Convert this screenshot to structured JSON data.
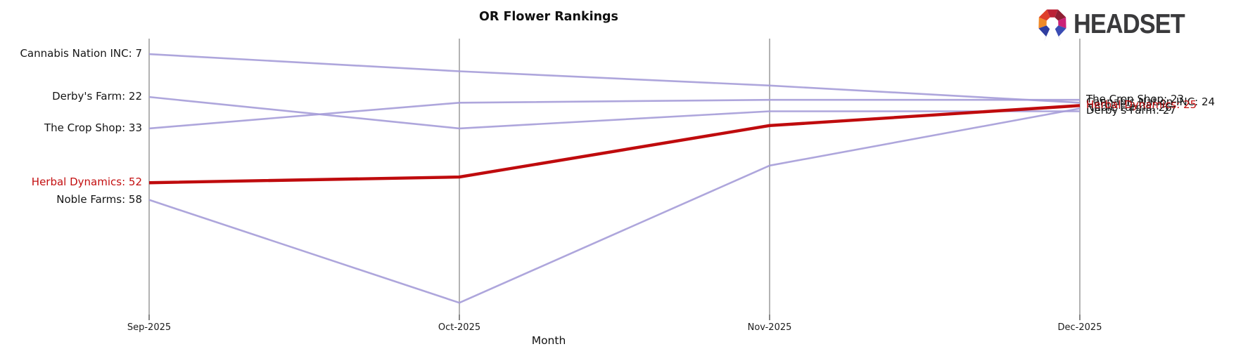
{
  "header": {
    "title": "OR Flower Rankings",
    "brand_text": "HEADSET",
    "brand_logo_icon": "headset-hex-ring-logo"
  },
  "chart_data": {
    "type": "line",
    "subtype": "bump-rank-chart",
    "title": "OR Flower Rankings",
    "xlabel": "Month",
    "ylabel": "",
    "x": [
      "Sep-2025",
      "Oct-2025",
      "Nov-2025",
      "Dec-2025"
    ],
    "y_axis": {
      "inverted": true,
      "note": "lower rank number = higher position",
      "range_visible": [
        7,
        94
      ]
    },
    "grid": {
      "vertical_gridlines": true,
      "horizontal_gridlines": false,
      "gridline_color": "#b3b3b3"
    },
    "legend_position": "inline-labels-left-and-right",
    "series": [
      {
        "name": "Cannabis Nation INC",
        "values": [
          7,
          13,
          18,
          24
        ],
        "color": "#a59cd8",
        "highlighted": false,
        "start_label": "Cannabis Nation INC: 7",
        "end_label": "Cannabis Nation INC: 24"
      },
      {
        "name": "Derby's Farm",
        "values": [
          22,
          33,
          27,
          27
        ],
        "color": "#a59cd8",
        "highlighted": false,
        "start_label": "Derby's Farm: 22",
        "end_label": "Derby's Farm: 27"
      },
      {
        "name": "The Crop Shop",
        "values": [
          33,
          24,
          23,
          23
        ],
        "color": "#a59cd8",
        "highlighted": false,
        "start_label": "The Crop Shop: 33",
        "end_label": "The Crop Shop: 23"
      },
      {
        "name": "Noble Farms",
        "values": [
          58,
          94,
          46,
          26
        ],
        "color": "#a59cd8",
        "highlighted": false,
        "start_label": "Noble Farms: 58",
        "end_label": "Noble Farms: 26"
      },
      {
        "name": "Herbal Dynamics",
        "values": [
          52,
          50,
          32,
          25
        ],
        "color": "#bf0b0d",
        "highlighted": true,
        "start_label": "Herbal Dynamics: 52",
        "end_label": "Herbal Dynamics: 25"
      }
    ],
    "colors": {
      "default_line": "#a59cd8",
      "highlight_line": "#bf0b0d",
      "highlight_label": "#c30e0f",
      "label_text": "#151515",
      "gridline": "#b3b3b3"
    }
  },
  "logo_colors": [
    "#2f3da0",
    "#f08a28",
    "#df3f2b",
    "#bb2135",
    "#8e1f32",
    "#cb2277",
    "#3a4cb4"
  ]
}
